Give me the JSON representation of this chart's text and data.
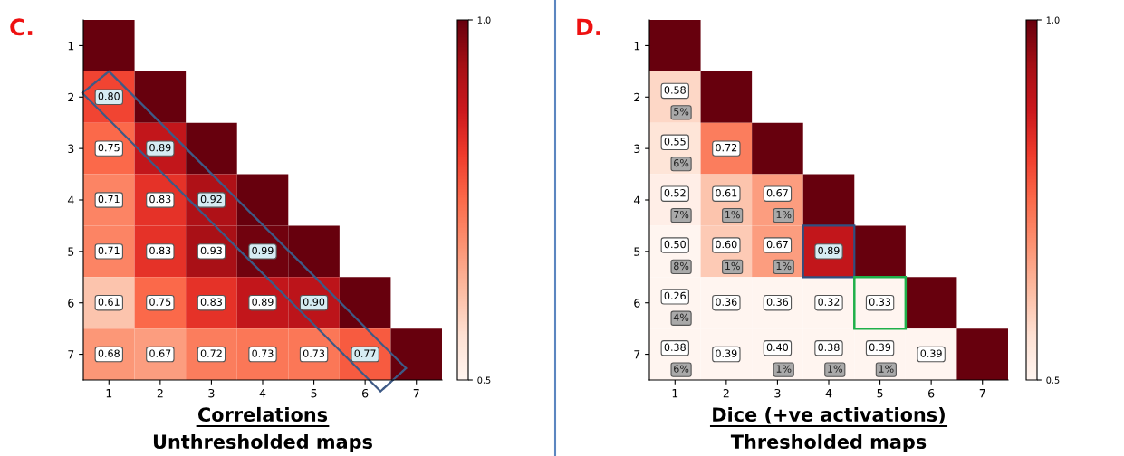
{
  "chart_data": [
    {
      "type": "heatmap",
      "title": "Correlations",
      "subtitle": "Unthresholded maps",
      "annotations": [
        "C."
      ],
      "categories": [
        "1",
        "2",
        "3",
        "4",
        "5",
        "6",
        "7"
      ],
      "y_categories": [
        "1",
        "2",
        "3",
        "4",
        "5",
        "6",
        "7"
      ],
      "cells": [
        [
          1.0,
          null,
          null,
          null,
          null,
          null,
          null
        ],
        [
          0.8,
          1.0,
          null,
          null,
          null,
          null,
          null
        ],
        [
          0.75,
          0.89,
          1.0,
          null,
          null,
          null,
          null
        ],
        [
          0.71,
          0.83,
          0.92,
          1.0,
          null,
          null,
          null
        ],
        [
          0.71,
          0.83,
          0.93,
          0.99,
          1.0,
          null,
          null
        ],
        [
          0.61,
          0.75,
          0.83,
          0.89,
          0.9,
          1.0,
          null
        ],
        [
          0.68,
          0.67,
          0.72,
          0.73,
          0.73,
          0.77,
          1.0
        ]
      ],
      "cell_labels": [
        [
          null,
          null,
          null,
          null,
          null,
          null,
          null
        ],
        [
          "0.80",
          null,
          null,
          null,
          null,
          null,
          null
        ],
        [
          "0.75",
          "0.89",
          null,
          null,
          null,
          null,
          null
        ],
        [
          "0.71",
          "0.83",
          "0.92",
          null,
          null,
          null,
          null
        ],
        [
          "0.71",
          "0.83",
          "0.93",
          "0.99",
          null,
          null,
          null
        ],
        [
          "0.61",
          "0.75",
          "0.83",
          "0.89",
          "0.90",
          null,
          null
        ],
        [
          "0.68",
          "0.67",
          "0.72",
          "0.73",
          "0.73",
          "0.77",
          null
        ]
      ],
      "clim": [
        0.5,
        1.0
      ],
      "cticks": [
        0.5,
        {
          "value": 1.0,
          "label": "1.0"
        }
      ]
    },
    {
      "type": "heatmap",
      "title": "Dice (+ve activations)",
      "subtitle": "Thresholded maps",
      "annotations": [
        "D."
      ],
      "categories": [
        "1",
        "2",
        "3",
        "4",
        "5",
        "6",
        "7"
      ],
      "y_categories": [
        "1",
        "2",
        "3",
        "4",
        "5",
        "6",
        "7"
      ],
      "cells": [
        [
          1.0,
          null,
          null,
          null,
          null,
          null,
          null
        ],
        [
          0.58,
          1.0,
          null,
          null,
          null,
          null,
          null
        ],
        [
          0.55,
          0.72,
          1.0,
          null,
          null,
          null,
          null
        ],
        [
          0.52,
          0.61,
          0.67,
          1.0,
          null,
          null,
          null
        ],
        [
          0.5,
          0.6,
          0.67,
          0.89,
          1.0,
          null,
          null
        ],
        [
          0.26,
          0.36,
          0.36,
          0.32,
          0.33,
          1.0,
          null
        ],
        [
          0.38,
          0.39,
          0.4,
          0.38,
          0.39,
          0.39,
          1.0
        ]
      ],
      "cell_labels": [
        [
          null,
          null,
          null,
          null,
          null,
          null,
          null
        ],
        [
          "0.58\n5%",
          null,
          null,
          null,
          null,
          null,
          null
        ],
        [
          "0.55\n6%",
          "0.72",
          null,
          null,
          null,
          null,
          null
        ],
        [
          "0.52\n7%",
          "0.61\n1%",
          "0.67\n1%",
          null,
          null,
          null,
          null
        ],
        [
          "0.50\n8%",
          "0.60\n1%",
          "0.67\n1%",
          "0.89",
          null,
          null,
          null
        ],
        [
          "0.26\n4%",
          "0.36",
          "0.36",
          "0.32",
          "0.33",
          null,
          null
        ],
        [
          "0.38\n6%",
          "0.39",
          "0.40\n1%",
          "0.38\n1%",
          "0.39\n1%",
          "0.39",
          null
        ]
      ],
      "clim": [
        0.5,
        1.0
      ],
      "cticks": [
        0.5,
        {
          "value": 1.0,
          "label": "1.0"
        }
      ]
    }
  ]
}
